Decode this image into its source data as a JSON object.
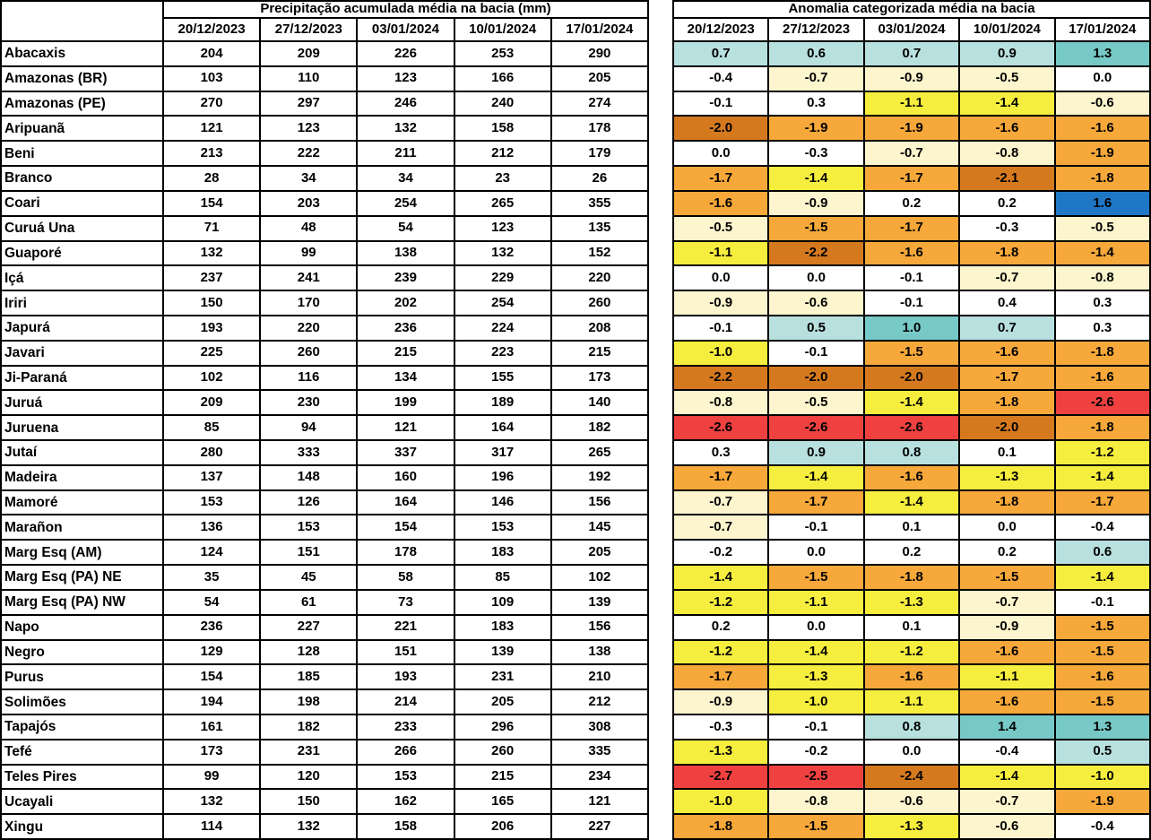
{
  "palette": {
    "white": "#ffffff",
    "cream": "#fcf5cd",
    "yellow": "#f6ee3e",
    "orange": "#f6a83a",
    "dark_orange": "#d5791f",
    "red": "#ee4140",
    "light_teal": "#b8e0df",
    "teal": "#76c9c6",
    "blue": "#1f78c6"
  },
  "chart_data": [
    {
      "type": "table",
      "title": "Precipitação acumulada média na bacia (mm)",
      "columns": [
        "20/12/2023",
        "27/12/2023",
        "03/01/2024",
        "10/01/2024",
        "17/01/2024"
      ],
      "rows": [
        {
          "basin": "Abacaxis",
          "values": [
            204,
            209,
            226,
            253,
            290
          ]
        },
        {
          "basin": "Amazonas (BR)",
          "values": [
            103,
            110,
            123,
            166,
            205
          ]
        },
        {
          "basin": "Amazonas (PE)",
          "values": [
            270,
            297,
            246,
            240,
            274
          ]
        },
        {
          "basin": "Aripuanã",
          "values": [
            121,
            123,
            132,
            158,
            178
          ]
        },
        {
          "basin": "Beni",
          "values": [
            213,
            222,
            211,
            212,
            179
          ]
        },
        {
          "basin": "Branco",
          "values": [
            28,
            34,
            34,
            23,
            26
          ]
        },
        {
          "basin": "Coari",
          "values": [
            154,
            203,
            254,
            265,
            355
          ]
        },
        {
          "basin": "Curuá Una",
          "values": [
            71,
            48,
            54,
            123,
            135
          ]
        },
        {
          "basin": "Guaporé",
          "values": [
            132,
            99,
            138,
            132,
            152
          ]
        },
        {
          "basin": "Içá",
          "values": [
            237,
            241,
            239,
            229,
            220
          ]
        },
        {
          "basin": "Iriri",
          "values": [
            150,
            170,
            202,
            254,
            260
          ]
        },
        {
          "basin": "Japurá",
          "values": [
            193,
            220,
            236,
            224,
            208
          ]
        },
        {
          "basin": "Javari",
          "values": [
            225,
            260,
            215,
            223,
            215
          ]
        },
        {
          "basin": "Ji-Paraná",
          "values": [
            102,
            116,
            134,
            155,
            173
          ]
        },
        {
          "basin": "Juruá",
          "values": [
            209,
            230,
            199,
            189,
            140
          ]
        },
        {
          "basin": "Juruena",
          "values": [
            85,
            94,
            121,
            164,
            182
          ]
        },
        {
          "basin": "Jutaí",
          "values": [
            280,
            333,
            337,
            317,
            265
          ]
        },
        {
          "basin": "Madeira",
          "values": [
            137,
            148,
            160,
            196,
            192
          ]
        },
        {
          "basin": "Mamoré",
          "values": [
            153,
            126,
            164,
            146,
            156
          ]
        },
        {
          "basin": "Marañon",
          "values": [
            136,
            153,
            154,
            153,
            145
          ]
        },
        {
          "basin": "Marg Esq (AM)",
          "values": [
            124,
            151,
            178,
            183,
            205
          ]
        },
        {
          "basin": "Marg Esq (PA) NE",
          "values": [
            35,
            45,
            58,
            85,
            102
          ]
        },
        {
          "basin": "Marg Esq (PA) NW",
          "values": [
            54,
            61,
            73,
            109,
            139
          ]
        },
        {
          "basin": "Napo",
          "values": [
            236,
            227,
            221,
            183,
            156
          ]
        },
        {
          "basin": "Negro",
          "values": [
            129,
            128,
            151,
            139,
            138
          ]
        },
        {
          "basin": "Purus",
          "values": [
            154,
            185,
            193,
            231,
            210
          ]
        },
        {
          "basin": "Solimões",
          "values": [
            194,
            198,
            214,
            205,
            212
          ]
        },
        {
          "basin": "Tapajós",
          "values": [
            161,
            182,
            233,
            296,
            308
          ]
        },
        {
          "basin": "Tefé",
          "values": [
            173,
            231,
            266,
            260,
            335
          ]
        },
        {
          "basin": "Teles Pires",
          "values": [
            99,
            120,
            153,
            215,
            234
          ]
        },
        {
          "basin": "Ucayali",
          "values": [
            132,
            150,
            162,
            165,
            121
          ]
        },
        {
          "basin": "Xingu",
          "values": [
            114,
            132,
            158,
            206,
            227
          ]
        }
      ]
    },
    {
      "type": "heatmap",
      "title": "Anomalia categorizada média na bacia",
      "columns": [
        "20/12/2023",
        "27/12/2023",
        "03/01/2024",
        "10/01/2024",
        "17/01/2024"
      ],
      "rows": [
        {
          "basin": "Abacaxis",
          "values": [
            "0.7",
            "0.6",
            "0.7",
            "0.9",
            "1.3"
          ],
          "colors": [
            "light_teal",
            "light_teal",
            "light_teal",
            "light_teal",
            "teal"
          ]
        },
        {
          "basin": "Amazonas (BR)",
          "values": [
            "-0.4",
            "-0.7",
            "-0.9",
            "-0.5",
            "0.0"
          ],
          "colors": [
            "white",
            "cream",
            "cream",
            "cream",
            "white"
          ]
        },
        {
          "basin": "Amazonas (PE)",
          "values": [
            "-0.1",
            "0.3",
            "-1.1",
            "-1.4",
            "-0.6"
          ],
          "colors": [
            "white",
            "white",
            "yellow",
            "yellow",
            "cream"
          ]
        },
        {
          "basin": "Aripuanã",
          "values": [
            "-2.0",
            "-1.9",
            "-1.9",
            "-1.6",
            "-1.6"
          ],
          "colors": [
            "dark_orange",
            "orange",
            "orange",
            "orange",
            "orange"
          ]
        },
        {
          "basin": "Beni",
          "values": [
            "0.0",
            "-0.3",
            "-0.7",
            "-0.8",
            "-1.9"
          ],
          "colors": [
            "white",
            "white",
            "cream",
            "cream",
            "orange"
          ]
        },
        {
          "basin": "Branco",
          "values": [
            "-1.7",
            "-1.4",
            "-1.7",
            "-2.1",
            "-1.8"
          ],
          "colors": [
            "orange",
            "yellow",
            "orange",
            "dark_orange",
            "orange"
          ]
        },
        {
          "basin": "Coari",
          "values": [
            "-1.6",
            "-0.9",
            "0.2",
            "0.2",
            "1.6"
          ],
          "colors": [
            "orange",
            "cream",
            "white",
            "white",
            "blue"
          ]
        },
        {
          "basin": "Curuá Una",
          "values": [
            "-0.5",
            "-1.5",
            "-1.7",
            "-0.3",
            "-0.5"
          ],
          "colors": [
            "cream",
            "orange",
            "orange",
            "white",
            "cream"
          ]
        },
        {
          "basin": "Guaporé",
          "values": [
            "-1.1",
            "-2.2",
            "-1.6",
            "-1.8",
            "-1.4"
          ],
          "colors": [
            "yellow",
            "dark_orange",
            "orange",
            "orange",
            "orange"
          ]
        },
        {
          "basin": "Içá",
          "values": [
            "0.0",
            "0.0",
            "-0.1",
            "-0.7",
            "-0.8"
          ],
          "colors": [
            "white",
            "white",
            "white",
            "cream",
            "cream"
          ]
        },
        {
          "basin": "Iriri",
          "values": [
            "-0.9",
            "-0.6",
            "-0.1",
            "0.4",
            "0.3"
          ],
          "colors": [
            "cream",
            "cream",
            "white",
            "white",
            "white"
          ]
        },
        {
          "basin": "Japurá",
          "values": [
            "-0.1",
            "0.5",
            "1.0",
            "0.7",
            "0.3"
          ],
          "colors": [
            "white",
            "light_teal",
            "teal",
            "light_teal",
            "white"
          ]
        },
        {
          "basin": "Javari",
          "values": [
            "-1.0",
            "-0.1",
            "-1.5",
            "-1.6",
            "-1.8"
          ],
          "colors": [
            "yellow",
            "white",
            "orange",
            "orange",
            "orange"
          ]
        },
        {
          "basin": "Ji-Paraná",
          "values": [
            "-2.2",
            "-2.0",
            "-2.0",
            "-1.7",
            "-1.6"
          ],
          "colors": [
            "dark_orange",
            "dark_orange",
            "dark_orange",
            "orange",
            "orange"
          ]
        },
        {
          "basin": "Juruá",
          "values": [
            "-0.8",
            "-0.5",
            "-1.4",
            "-1.8",
            "-2.6"
          ],
          "colors": [
            "cream",
            "cream",
            "yellow",
            "orange",
            "red"
          ]
        },
        {
          "basin": "Juruena",
          "values": [
            "-2.6",
            "-2.6",
            "-2.6",
            "-2.0",
            "-1.8"
          ],
          "colors": [
            "red",
            "red",
            "red",
            "dark_orange",
            "orange"
          ]
        },
        {
          "basin": "Jutaí",
          "values": [
            "0.3",
            "0.9",
            "0.8",
            "0.1",
            "-1.2"
          ],
          "colors": [
            "white",
            "light_teal",
            "light_teal",
            "white",
            "yellow"
          ]
        },
        {
          "basin": "Madeira",
          "values": [
            "-1.7",
            "-1.4",
            "-1.6",
            "-1.3",
            "-1.4"
          ],
          "colors": [
            "orange",
            "yellow",
            "orange",
            "yellow",
            "yellow"
          ]
        },
        {
          "basin": "Mamoré",
          "values": [
            "-0.7",
            "-1.7",
            "-1.4",
            "-1.8",
            "-1.7"
          ],
          "colors": [
            "cream",
            "orange",
            "yellow",
            "orange",
            "orange"
          ]
        },
        {
          "basin": "Marañon",
          "values": [
            "-0.7",
            "-0.1",
            "0.1",
            "0.0",
            "-0.4"
          ],
          "colors": [
            "cream",
            "white",
            "white",
            "white",
            "white"
          ]
        },
        {
          "basin": "Marg Esq (AM)",
          "values": [
            "-0.2",
            "0.0",
            "0.2",
            "0.2",
            "0.6"
          ],
          "colors": [
            "white",
            "white",
            "white",
            "white",
            "light_teal"
          ]
        },
        {
          "basin": "Marg Esq (PA) NE",
          "values": [
            "-1.4",
            "-1.5",
            "-1.8",
            "-1.5",
            "-1.4"
          ],
          "colors": [
            "yellow",
            "orange",
            "orange",
            "orange",
            "yellow"
          ]
        },
        {
          "basin": "Marg Esq (PA) NW",
          "values": [
            "-1.2",
            "-1.1",
            "-1.3",
            "-0.7",
            "-0.1"
          ],
          "colors": [
            "yellow",
            "yellow",
            "yellow",
            "cream",
            "white"
          ]
        },
        {
          "basin": "Napo",
          "values": [
            "0.2",
            "0.0",
            "0.1",
            "-0.9",
            "-1.5"
          ],
          "colors": [
            "white",
            "white",
            "white",
            "cream",
            "orange"
          ]
        },
        {
          "basin": "Negro",
          "values": [
            "-1.2",
            "-1.4",
            "-1.2",
            "-1.6",
            "-1.5"
          ],
          "colors": [
            "yellow",
            "yellow",
            "yellow",
            "orange",
            "orange"
          ]
        },
        {
          "basin": "Purus",
          "values": [
            "-1.7",
            "-1.3",
            "-1.6",
            "-1.1",
            "-1.6"
          ],
          "colors": [
            "orange",
            "yellow",
            "orange",
            "yellow",
            "orange"
          ]
        },
        {
          "basin": "Solimões",
          "values": [
            "-0.9",
            "-1.0",
            "-1.1",
            "-1.6",
            "-1.5"
          ],
          "colors": [
            "cream",
            "yellow",
            "yellow",
            "orange",
            "orange"
          ]
        },
        {
          "basin": "Tapajós",
          "values": [
            "-0.3",
            "-0.1",
            "0.8",
            "1.4",
            "1.3"
          ],
          "colors": [
            "white",
            "white",
            "light_teal",
            "teal",
            "teal"
          ]
        },
        {
          "basin": "Tefé",
          "values": [
            "-1.3",
            "-0.2",
            "0.0",
            "-0.4",
            "0.5"
          ],
          "colors": [
            "yellow",
            "white",
            "white",
            "white",
            "light_teal"
          ]
        },
        {
          "basin": "Teles Pires",
          "values": [
            "-2.7",
            "-2.5",
            "-2.4",
            "-1.4",
            "-1.0"
          ],
          "colors": [
            "red",
            "red",
            "dark_orange",
            "yellow",
            "yellow"
          ]
        },
        {
          "basin": "Ucayali",
          "values": [
            "-1.0",
            "-0.8",
            "-0.6",
            "-0.7",
            "-1.9"
          ],
          "colors": [
            "yellow",
            "cream",
            "cream",
            "cream",
            "orange"
          ]
        },
        {
          "basin": "Xingu",
          "values": [
            "-1.8",
            "-1.5",
            "-1.3",
            "-0.6",
            "-0.4"
          ],
          "colors": [
            "orange",
            "orange",
            "yellow",
            "cream",
            "white"
          ]
        }
      ]
    }
  ]
}
